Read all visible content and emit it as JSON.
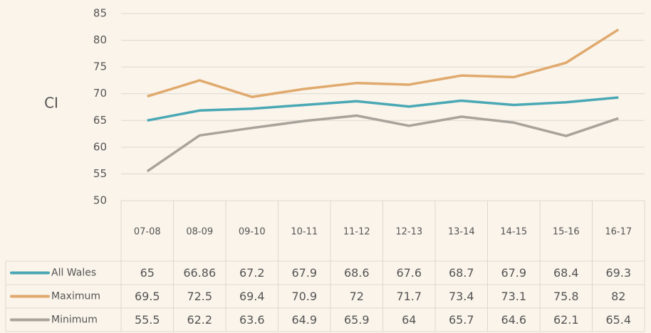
{
  "chart_data": {
    "type": "line",
    "y_label": "CI",
    "categories": [
      "07-08",
      "08-09",
      "09-10",
      "10-11",
      "11-12",
      "12-13",
      "13-14",
      "14-15",
      "15-16",
      "16-17"
    ],
    "series": [
      {
        "name": "All Wales",
        "color": "#4aa8b5",
        "values": [
          65,
          66.86,
          67.2,
          67.9,
          68.6,
          67.6,
          68.7,
          67.9,
          68.4,
          69.3
        ]
      },
      {
        "name": "Maximum",
        "color": "#e0a96d",
        "values": [
          69.5,
          72.5,
          69.4,
          70.9,
          72,
          71.7,
          73.4,
          73.1,
          75.8,
          82
        ]
      },
      {
        "name": "Minimum",
        "color": "#a8a39b",
        "values": [
          55.5,
          62.2,
          63.6,
          64.9,
          65.9,
          64,
          65.7,
          64.6,
          62.1,
          65.4
        ]
      }
    ],
    "ylim": [
      50,
      85
    ],
    "yticks": [
      50,
      55,
      60,
      65,
      70,
      75,
      80,
      85
    ],
    "grid": true
  }
}
